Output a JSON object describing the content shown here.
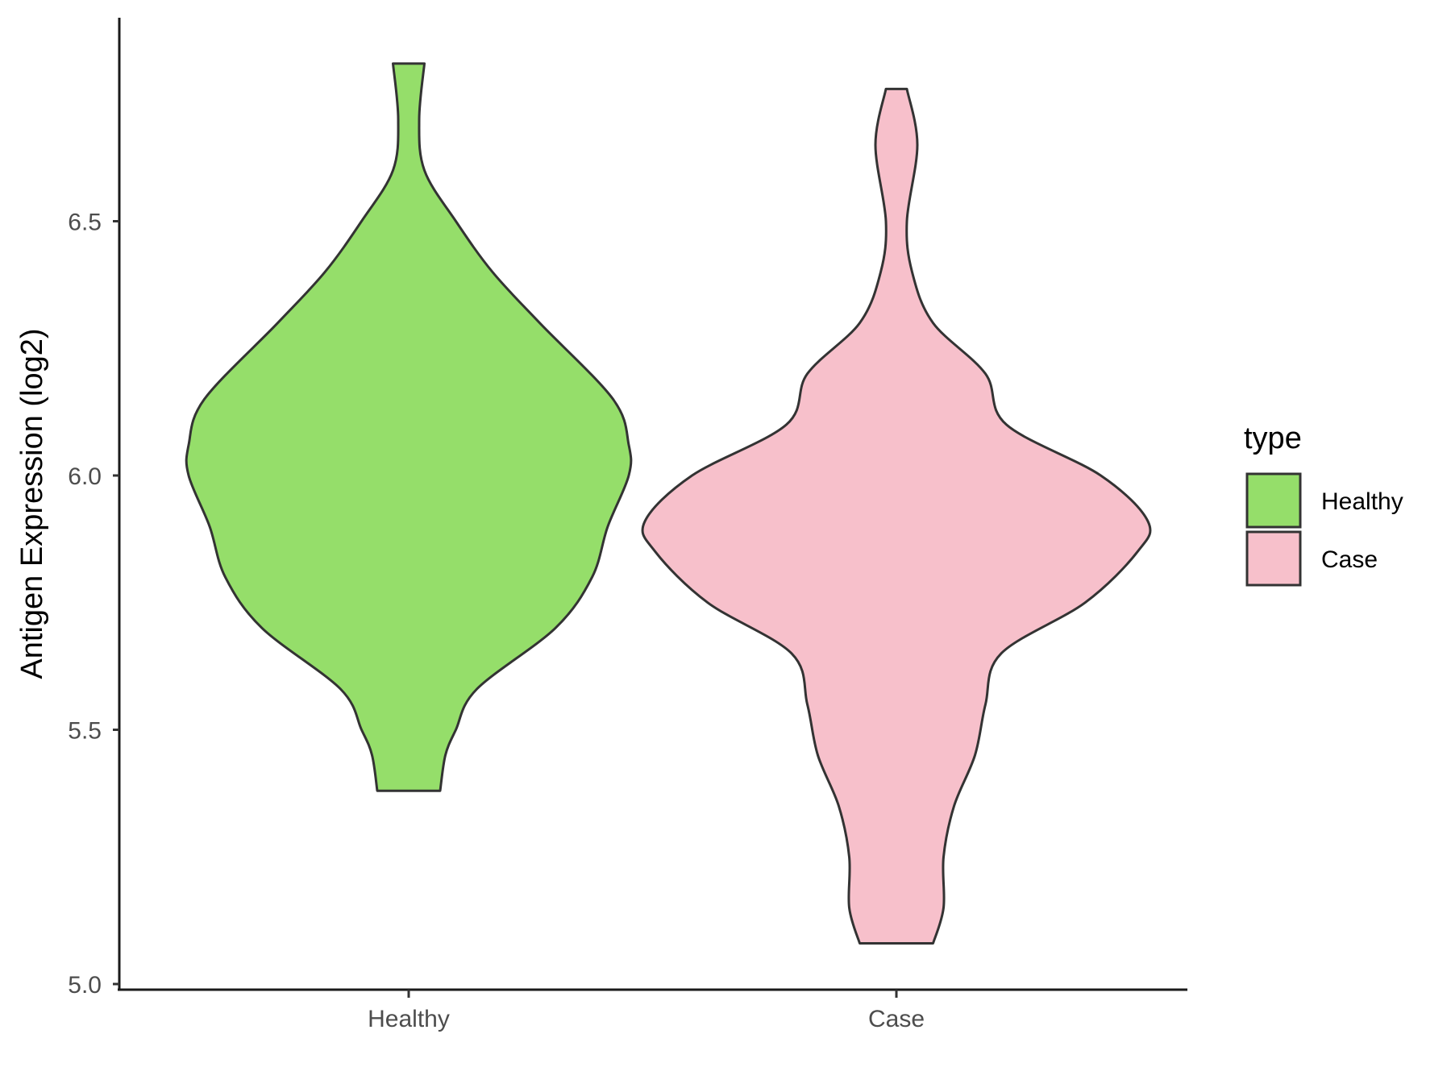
{
  "chart_data": {
    "type": "violin",
    "categories": [
      "Healthy",
      "Case"
    ],
    "ylabel": "Antigen Expression (log2)",
    "ylim": [
      5.0,
      6.82
    ],
    "yticks": [
      5.0,
      5.5,
      6.0,
      6.5
    ],
    "ytick_labels": [
      "5.0",
      "5.5",
      "6.0",
      "6.5"
    ],
    "grid": false,
    "legend": {
      "title": "type",
      "position": "right",
      "entries": [
        {
          "label": "Healthy",
          "color": "#95DE6A"
        },
        {
          "label": "Case",
          "color": "#F7C0CB"
        }
      ]
    },
    "series": [
      {
        "category": "Healthy",
        "fill": "#95DE6A",
        "min": 5.38,
        "max": 6.81,
        "density_profile": [
          {
            "y": 5.38,
            "half_width": 0.06
          },
          {
            "y": 5.45,
            "half_width": 0.07
          },
          {
            "y": 5.5,
            "half_width": 0.09
          },
          {
            "y": 5.58,
            "half_width": 0.13
          },
          {
            "y": 5.7,
            "half_width": 0.28
          },
          {
            "y": 5.8,
            "half_width": 0.35
          },
          {
            "y": 5.9,
            "half_width": 0.38
          },
          {
            "y": 6.0,
            "half_width": 0.42
          },
          {
            "y": 6.06,
            "half_width": 0.42
          },
          {
            "y": 6.15,
            "half_width": 0.39
          },
          {
            "y": 6.3,
            "half_width": 0.25
          },
          {
            "y": 6.4,
            "half_width": 0.16
          },
          {
            "y": 6.5,
            "half_width": 0.09
          },
          {
            "y": 6.6,
            "half_width": 0.03
          },
          {
            "y": 6.7,
            "half_width": 0.02
          },
          {
            "y": 6.81,
            "half_width": 0.03
          }
        ]
      },
      {
        "category": "Case",
        "fill": "#F7C0CB",
        "min": 5.08,
        "max": 6.76,
        "density_profile": [
          {
            "y": 5.08,
            "half_width": 0.07
          },
          {
            "y": 5.15,
            "half_width": 0.09
          },
          {
            "y": 5.25,
            "half_width": 0.09
          },
          {
            "y": 5.35,
            "half_width": 0.11
          },
          {
            "y": 5.45,
            "half_width": 0.15
          },
          {
            "y": 5.55,
            "half_width": 0.17
          },
          {
            "y": 5.65,
            "half_width": 0.2
          },
          {
            "y": 5.75,
            "half_width": 0.36
          },
          {
            "y": 5.85,
            "half_width": 0.46
          },
          {
            "y": 5.91,
            "half_width": 0.48
          },
          {
            "y": 6.0,
            "half_width": 0.39
          },
          {
            "y": 6.1,
            "half_width": 0.21
          },
          {
            "y": 6.2,
            "half_width": 0.17
          },
          {
            "y": 6.3,
            "half_width": 0.07
          },
          {
            "y": 6.4,
            "half_width": 0.03
          },
          {
            "y": 6.5,
            "half_width": 0.02
          },
          {
            "y": 6.65,
            "half_width": 0.04
          },
          {
            "y": 6.76,
            "half_width": 0.02
          }
        ]
      }
    ]
  }
}
